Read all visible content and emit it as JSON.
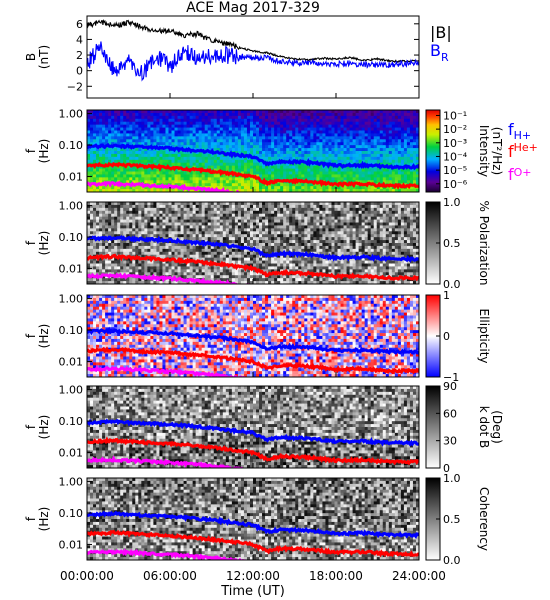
{
  "figure": {
    "title": "ACE Mag 2017-329",
    "xlabel": "Time (UT)",
    "x_ticks": [
      "00:00:00",
      "06:00:00",
      "12:00:00",
      "18:00:00",
      "24:00:00"
    ],
    "x_tick_hours": [
      0,
      6,
      12,
      18,
      24
    ],
    "freq_ticks": [
      "1.00",
      "0.10",
      "0.01"
    ],
    "freq_tick_values": [
      1.0,
      0.1,
      0.01
    ]
  },
  "chart_data": [
    {
      "type": "line",
      "ylabel": "B",
      "ylabel_unit": "(nT)",
      "xlim": [
        0,
        24
      ],
      "ylim": [
        -3.5,
        7
      ],
      "y_ticks": [
        -2,
        0,
        2,
        4,
        6
      ],
      "y_tick_labels": [
        "−2",
        "0",
        "2",
        "4",
        "6"
      ],
      "x": [
        0,
        1,
        2,
        3,
        4,
        5,
        6,
        7,
        8,
        9,
        10,
        11,
        12,
        13,
        14,
        15,
        16,
        17,
        18,
        19,
        20,
        21,
        22,
        23,
        24
      ],
      "series": [
        {
          "name": "|B|",
          "color": "#000000",
          "values": [
            5.8,
            6.2,
            5.7,
            6.2,
            5.6,
            5.0,
            5.1,
            4.5,
            4.7,
            3.8,
            3.5,
            3.0,
            2.5,
            2.3,
            1.8,
            1.5,
            1.4,
            1.6,
            1.5,
            1.7,
            1.3,
            1.5,
            1.2,
            1.2,
            1.3
          ]
        },
        {
          "name": "B",
          "name_sub": "R",
          "color": "#0000ff",
          "values": [
            1.0,
            3.0,
            0.0,
            1.5,
            -0.5,
            2.0,
            0.5,
            2.5,
            1.5,
            1.8,
            2.0,
            1.8,
            1.7,
            1.6,
            1.2,
            1.0,
            1.0,
            0.9,
            0.8,
            1.0,
            0.8,
            0.7,
            0.8,
            0.9,
            1.0
          ]
        }
      ]
    },
    {
      "type": "heatmap",
      "ylabel": "f",
      "ylabel_unit": "(Hz)",
      "colorbar_label": "Intensity",
      "colorbar_unit": "(nT²/Hz)",
      "colorbar_scale": "rainbow",
      "colorbar_ticks": [
        "10⁻¹",
        "10⁻²",
        "10⁻³",
        "10⁻⁴",
        "10⁻⁵",
        "10⁻⁶"
      ],
      "colorbar_tick_exponents": [
        -1,
        -2,
        -3,
        -4,
        -5,
        -6
      ],
      "colorbar_range": [
        -6.6,
        -0.6
      ]
    },
    {
      "type": "heatmap",
      "ylabel": "f",
      "ylabel_unit": "(Hz)",
      "colorbar_label": "% Polarization",
      "colorbar_scale": "gray",
      "colorbar_ticks": [
        "1.0",
        "0.5",
        "0.0"
      ],
      "colorbar_tick_values": [
        1.0,
        0.5,
        0.0
      ],
      "colorbar_range": [
        0,
        1
      ]
    },
    {
      "type": "heatmap",
      "ylabel": "f",
      "ylabel_unit": "(Hz)",
      "colorbar_label": "Ellipticity",
      "colorbar_scale": "bwr",
      "colorbar_ticks": [
        "1",
        "0",
        "−1"
      ],
      "colorbar_tick_values": [
        1,
        0,
        -1
      ],
      "colorbar_range": [
        -1,
        1
      ]
    },
    {
      "type": "heatmap",
      "ylabel": "f",
      "ylabel_unit": "(Hz)",
      "colorbar_label": "k dot B",
      "colorbar_unit": "(Deg)",
      "colorbar_scale": "gray",
      "colorbar_ticks": [
        "90",
        "60",
        "30",
        "0"
      ],
      "colorbar_tick_values": [
        90,
        60,
        30,
        0
      ],
      "colorbar_range": [
        0,
        90
      ]
    },
    {
      "type": "heatmap",
      "ylabel": "f",
      "ylabel_unit": "(Hz)",
      "colorbar_label": "Coherency",
      "colorbar_scale": "gray",
      "colorbar_ticks": [
        "1.0",
        "0.5",
        "0.0"
      ],
      "colorbar_tick_values": [
        1.0,
        0.5,
        0.0
      ],
      "colorbar_range": [
        0,
        1
      ]
    }
  ],
  "gyrofrequency_lines": {
    "x_hours": [
      0,
      2,
      4,
      6,
      8,
      10,
      12,
      13,
      14,
      16,
      18,
      20,
      22,
      24
    ],
    "series": [
      {
        "name": "f",
        "name_sub": "H+",
        "color": "#0000ff",
        "values": [
          0.09,
          0.094,
          0.085,
          0.078,
          0.066,
          0.054,
          0.042,
          0.025,
          0.03,
          0.028,
          0.022,
          0.023,
          0.02,
          0.02
        ]
      },
      {
        "name": "f",
        "name_sub": "He+",
        "color": "#ff0000",
        "values": [
          0.022,
          0.024,
          0.021,
          0.019,
          0.016,
          0.013,
          0.01,
          0.0062,
          0.0075,
          0.007,
          0.0056,
          0.0058,
          0.005,
          0.005
        ]
      },
      {
        "name": "f",
        "name_sub": "O+",
        "color": "#ff00ff",
        "values": [
          0.0056,
          0.0059,
          0.0053,
          0.0048,
          0.0041,
          0.0034,
          0.0026
        ]
      }
    ]
  }
}
